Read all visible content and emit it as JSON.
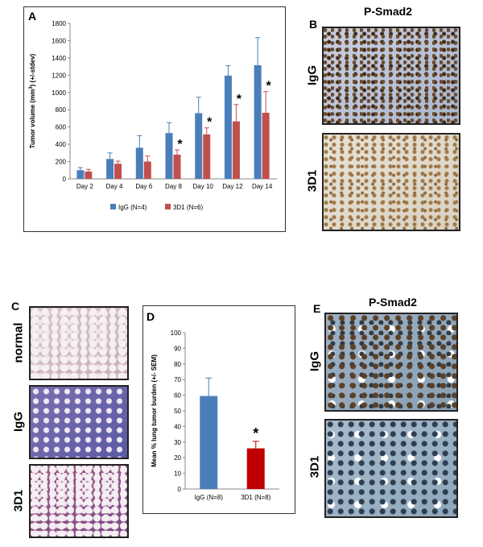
{
  "panels": {
    "a": "A",
    "b": "B",
    "c": "C",
    "d": "D",
    "e": "E"
  },
  "chart_data": [
    {
      "type": "bar",
      "panel": "A",
      "categories": [
        "Day 2",
        "Day 4",
        "Day 6",
        "Day 8",
        "Day 10",
        "Day 12",
        "Day 14"
      ],
      "series": [
        {
          "name": "IgG (N=4)",
          "color": "#4a7ebb",
          "values": [
            100,
            230,
            360,
            530,
            760,
            1195,
            1315
          ],
          "errors": [
            30,
            70,
            140,
            120,
            185,
            115,
            320
          ]
        },
        {
          "name": "3D1 (N=6)",
          "color": "#c0504d",
          "values": [
            85,
            175,
            200,
            280,
            515,
            665,
            765
          ],
          "errors": [
            25,
            30,
            65,
            55,
            75,
            195,
            245
          ]
        }
      ],
      "significance": [
        "",
        "",
        "",
        "*",
        "*",
        "*",
        "*"
      ],
      "ylabel": "Tumor volume (mm3) (+/-stdev)",
      "ylim": [
        0,
        1800
      ],
      "yticks": [
        0,
        200,
        400,
        600,
        800,
        1000,
        1200,
        1400,
        1600,
        1800
      ]
    },
    {
      "type": "bar",
      "panel": "D",
      "categories": [
        "IgG (N=8)",
        "3D1 (N=8)"
      ],
      "values": [
        59.5,
        26
      ],
      "errors": [
        11.5,
        4.5
      ],
      "colors": [
        "#4a7ebb",
        "#c00000"
      ],
      "significance": [
        "",
        "*"
      ],
      "ylabel": "Mean % lung tumor burden (+/- SEM)",
      "ylim": [
        0,
        100
      ],
      "yticks": [
        0,
        10,
        20,
        30,
        40,
        50,
        60,
        70,
        80,
        90,
        100
      ]
    }
  ],
  "panel_b": {
    "title": "P-Smad2",
    "labels": [
      "IgG",
      "3D1"
    ]
  },
  "panel_c": {
    "labels": [
      "normal",
      "IgG",
      "3D1"
    ]
  },
  "panel_e": {
    "title": "P-Smad2",
    "labels": [
      "IgG",
      "3D1"
    ]
  }
}
